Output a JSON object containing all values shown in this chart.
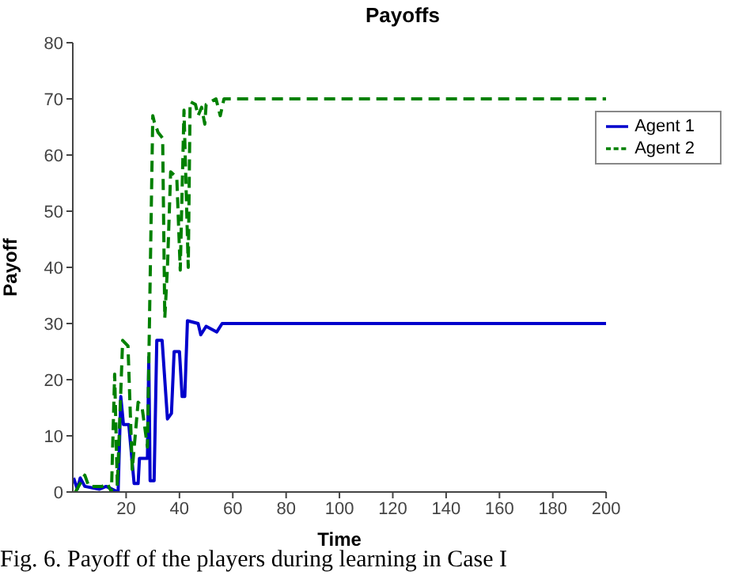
{
  "chart_data": {
    "type": "line",
    "title": "Payoffs",
    "xlabel": "Time",
    "ylabel": "Payoff",
    "xlim": [
      0,
      200
    ],
    "xticks": [
      20,
      40,
      60,
      80,
      100,
      120,
      140,
      160,
      180,
      200
    ],
    "ylim": [
      0,
      80
    ],
    "yticks": [
      0,
      10,
      20,
      30,
      40,
      50,
      60,
      70,
      80
    ],
    "grid": false,
    "legend": "top right",
    "annotations": [
      "Fig. 6. Payoff of the players during learning in Case I"
    ],
    "series": [
      {
        "name": "Agent 1",
        "color": "#0000cc",
        "line_style": "solid",
        "x": [
          0.3,
          1.7,
          2.8,
          4.5,
          10,
          12.5,
          17,
          18,
          19,
          21,
          23,
          24.5,
          25,
          28,
          28.5,
          29,
          30.5,
          31.5,
          33.5,
          35.5,
          37,
          38,
          40,
          41,
          42,
          43,
          47,
          48,
          50,
          54,
          56,
          100,
          200
        ],
        "values": [
          2.5,
          0.5,
          2.5,
          1,
          0.5,
          1,
          0,
          17,
          12,
          12,
          1.5,
          1.5,
          6,
          6,
          24,
          2,
          2,
          27,
          27,
          13,
          14,
          25,
          25,
          17,
          17,
          30.5,
          30,
          28,
          29.5,
          28.5,
          30,
          30,
          30
        ]
      },
      {
        "name": "Agent 2",
        "color": "#008000",
        "line_style": "dashed",
        "x": [
          1,
          4.5,
          6,
          11,
          13,
          14.5,
          15.7,
          16.7,
          18.7,
          20.7,
          22.3,
          24.5,
          26,
          28,
          30,
          30.5,
          32,
          33.7,
          34.5,
          35.5,
          36.7,
          39,
          40.3,
          41.7,
          43.3,
          44,
          46,
          47,
          48.3,
          49.5,
          50,
          53.7,
          55.3,
          56.7,
          100,
          200
        ],
        "values": [
          0,
          3,
          1,
          1,
          1.5,
          0,
          21,
          1,
          27,
          26,
          4,
          16,
          15,
          8,
          67,
          66,
          64,
          63,
          31,
          40,
          57,
          56,
          39.5,
          68,
          40,
          69.5,
          69,
          67,
          68.5,
          65.5,
          69,
          70,
          67,
          70,
          70,
          70
        ]
      }
    ]
  }
}
